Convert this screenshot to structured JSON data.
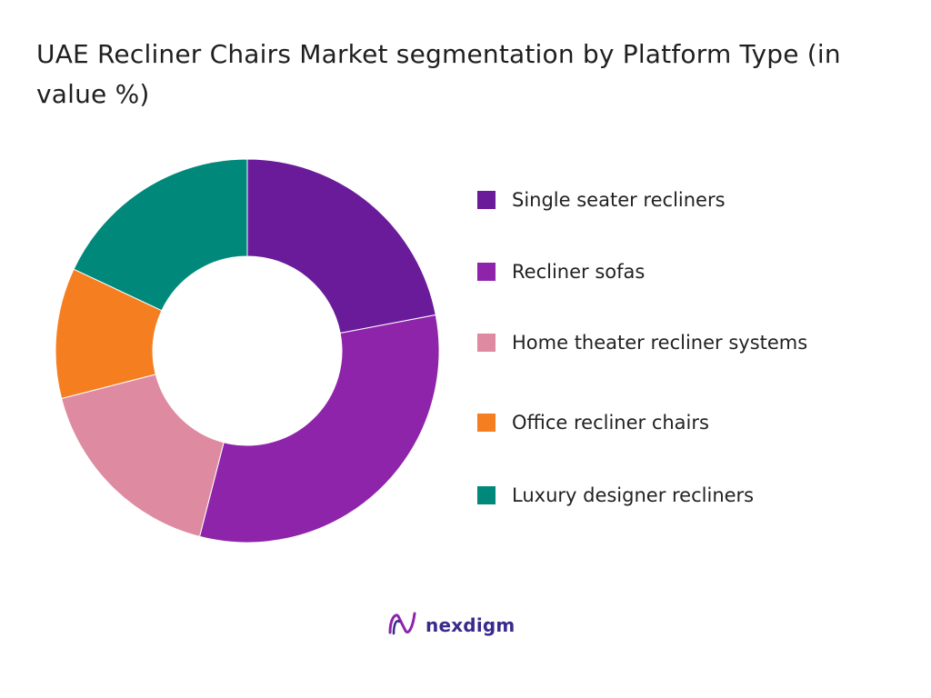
{
  "chart_data": {
    "type": "pie",
    "title": "UAE Recliner Chairs Market segmentation by Platform Type (in value %)",
    "donut": true,
    "legend_position": "right",
    "unit": "%",
    "series": [
      {
        "name": "Single seater recliners",
        "value": 22,
        "color": "#6a1b9a"
      },
      {
        "name": "Recliner sofas",
        "value": 32,
        "color": "#8e24aa"
      },
      {
        "name": "Home theater recliner systems",
        "value": 17,
        "color": "#de8aa0"
      },
      {
        "name": "Office recliner chairs",
        "value": 11,
        "color": "#f57f20"
      },
      {
        "name": "Luxury designer recliners",
        "value": 18,
        "color": "#00897b"
      }
    ]
  },
  "brand": {
    "name": "nexdigm",
    "icon": "nexdigm-logo-icon",
    "color": "#3a2a8c"
  }
}
